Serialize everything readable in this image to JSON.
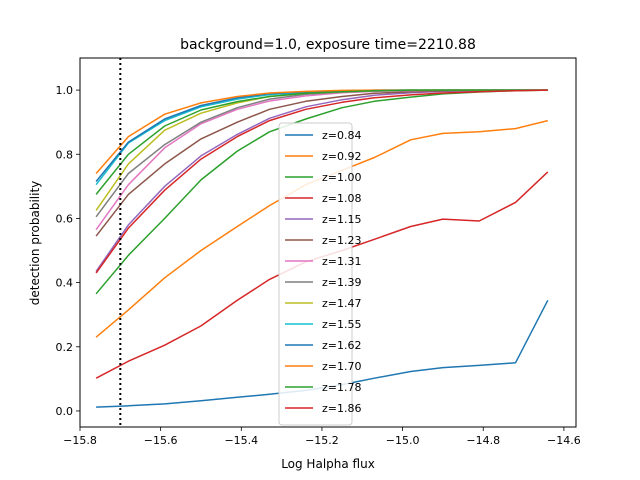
{
  "chart_data": {
    "type": "line",
    "title": "background=1.0, exposure time=2210.88",
    "xlabel": "Log Halpha flux",
    "ylabel": "detection probability",
    "xlim": [
      -15.8,
      -14.57
    ],
    "ylim": [
      -0.05,
      1.1
    ],
    "x_ticks": [
      -15.8,
      -15.6,
      -15.4,
      -15.2,
      -15.0,
      -14.8,
      -14.6
    ],
    "x_tick_labels": [
      "−15.8",
      "−15.6",
      "−15.4",
      "−15.2",
      "−15.0",
      "−14.8",
      "−14.6"
    ],
    "y_ticks": [
      0.0,
      0.2,
      0.4,
      0.6,
      0.8,
      1.0
    ],
    "y_tick_labels": [
      "0.0",
      "0.2",
      "0.4",
      "0.6",
      "0.8",
      "1.0"
    ],
    "vline": {
      "x": -15.7,
      "style": "dotted",
      "color": "#000000"
    },
    "grid": false,
    "legend_position": "center",
    "x": [
      -15.76,
      -15.68,
      -15.59,
      -15.5,
      -15.41,
      -15.33,
      -15.24,
      -15.15,
      -15.07,
      -14.98,
      -14.9,
      -14.81,
      -14.72,
      -14.64
    ],
    "series": [
      {
        "name": "z=0.84",
        "color": "#1f77b4",
        "values": [
          0.012,
          0.016,
          0.022,
          0.032,
          0.043,
          0.052,
          0.064,
          0.082,
          0.102,
          0.123,
          0.135,
          0.142,
          0.15,
          0.345
        ]
      },
      {
        "name": "z=0.92",
        "color": "#ff7f0e",
        "values": [
          0.23,
          0.315,
          0.415,
          0.5,
          0.575,
          0.64,
          0.705,
          0.75,
          0.79,
          0.845,
          0.865,
          0.87,
          0.88,
          0.905
        ]
      },
      {
        "name": "z=1.00",
        "color": "#2ca02c",
        "values": [
          0.365,
          0.485,
          0.6,
          0.72,
          0.81,
          0.87,
          0.91,
          0.945,
          0.965,
          0.978,
          0.988,
          0.994,
          0.998,
          1.0
        ]
      },
      {
        "name": "z=1.08",
        "color": "#d62728",
        "values": [
          0.102,
          0.155,
          0.205,
          0.265,
          0.345,
          0.41,
          0.465,
          0.5,
          0.535,
          0.575,
          0.598,
          0.592,
          0.65,
          0.745
        ]
      },
      {
        "name": "z=1.15",
        "color": "#9467bd",
        "values": [
          0.435,
          0.58,
          0.7,
          0.795,
          0.862,
          0.912,
          0.948,
          0.97,
          0.984,
          0.992,
          0.996,
          0.998,
          1.0,
          1.0
        ]
      },
      {
        "name": "z=1.23",
        "color": "#8c564b",
        "values": [
          0.545,
          0.675,
          0.77,
          0.848,
          0.9,
          0.94,
          0.965,
          0.98,
          0.99,
          0.995,
          0.998,
          1.0,
          1.0,
          1.0
        ]
      },
      {
        "name": "z=1.31",
        "color": "#e377c2",
        "values": [
          0.565,
          0.705,
          0.82,
          0.895,
          0.94,
          0.966,
          0.982,
          0.992,
          0.996,
          0.998,
          1.0,
          1.0,
          1.0,
          1.0
        ]
      },
      {
        "name": "z=1.39",
        "color": "#7f7f7f",
        "values": [
          0.605,
          0.74,
          0.83,
          0.9,
          0.945,
          0.972,
          0.987,
          0.994,
          0.997,
          0.999,
          1.0,
          1.0,
          1.0,
          1.0
        ]
      },
      {
        "name": "z=1.47",
        "color": "#bcbd22",
        "values": [
          0.625,
          0.77,
          0.875,
          0.928,
          0.96,
          0.98,
          0.99,
          0.995,
          0.998,
          1.0,
          1.0,
          1.0,
          1.0,
          1.0
        ]
      },
      {
        "name": "z=1.55",
        "color": "#17becf",
        "values": [
          0.705,
          0.835,
          0.905,
          0.948,
          0.972,
          0.986,
          0.993,
          0.997,
          0.999,
          1.0,
          1.0,
          1.0,
          1.0,
          1.0
        ]
      },
      {
        "name": "z=1.62",
        "color": "#1f77b4",
        "values": [
          0.715,
          0.838,
          0.91,
          0.952,
          0.976,
          0.989,
          0.995,
          0.998,
          1.0,
          1.0,
          1.0,
          1.0,
          1.0,
          1.0
        ]
      },
      {
        "name": "z=1.70",
        "color": "#ff7f0e",
        "values": [
          0.74,
          0.855,
          0.925,
          0.96,
          0.98,
          0.991,
          0.996,
          0.999,
          1.0,
          1.0,
          1.0,
          1.0,
          1.0,
          1.0
        ]
      },
      {
        "name": "z=1.78",
        "color": "#2ca02c",
        "values": [
          0.675,
          0.8,
          0.888,
          0.938,
          0.964,
          0.98,
          0.99,
          0.995,
          0.998,
          1.0,
          1.0,
          1.0,
          1.0,
          1.0
        ]
      },
      {
        "name": "z=1.86",
        "color": "#d62728",
        "values": [
          0.43,
          0.57,
          0.688,
          0.785,
          0.855,
          0.905,
          0.94,
          0.962,
          0.976,
          0.985,
          0.991,
          0.995,
          0.998,
          1.0
        ]
      }
    ]
  }
}
